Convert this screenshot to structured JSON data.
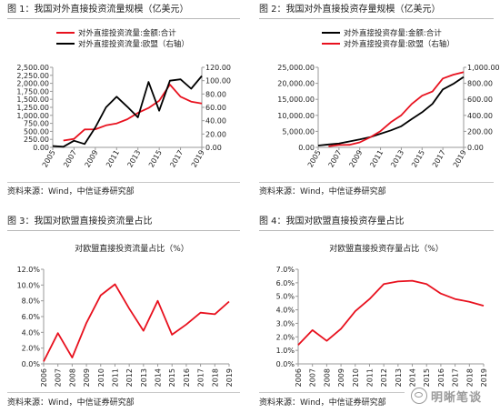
{
  "panels": [
    {
      "title": "图 1：我国对外直接投资流量规模（亿美元）",
      "source": "资料来源：Wind，中信证券研究部"
    },
    {
      "title": "图 2：我国对外直接投资存量规模（亿美元）",
      "source": "资料来源：Wind，中信证券研究部"
    },
    {
      "title": "图 3：我国对欧盟直接投资流量占比",
      "source": "资料来源：Wind，中信证券研究部"
    },
    {
      "title": "图 4：我国对欧盟直接投资存量占比",
      "source": "资料来源：Wind，中信证券研究部"
    }
  ],
  "watermark": {
    "text": "明晰笔谈",
    "icon": "speech-bubble-icon"
  },
  "colors": {
    "red": "#e8111e",
    "black": "#000000",
    "axis": "#999999"
  },
  "chart_data": [
    {
      "type": "line",
      "title": "",
      "x": [
        "2005",
        "2006",
        "2007",
        "2008",
        "2009",
        "2010",
        "2011",
        "2012",
        "2013",
        "2014",
        "2015",
        "2016",
        "2017",
        "2018",
        "2019"
      ],
      "xticks": [
        "2005",
        "2007",
        "2009",
        "2011",
        "2013",
        "2015",
        "2017",
        "2019"
      ],
      "ylim_left": [
        0,
        2500
      ],
      "yticks_left": [
        "0.00",
        "250.00",
        "500.00",
        "750.00",
        "1,000.00",
        "1,250.00",
        "1,500.00",
        "1,750.00",
        "2,000.00",
        "2,250.00",
        "2,500.00"
      ],
      "ylim_right": [
        0,
        120
      ],
      "yticks_right": [
        "0.00",
        "20.00",
        "40.00",
        "60.00",
        "80.00",
        "100.00",
        "120.00"
      ],
      "legend_position": "top-left",
      "series": [
        {
          "name": "对外直接投资流量:金额:合计",
          "axis": "left",
          "color": "#e8111e",
          "values": [
            null,
            212,
            265,
            559,
            565,
            688,
            747,
            878,
            1078,
            1231,
            1457,
            1961,
            1583,
            1430,
            1369
          ]
        },
        {
          "name": "对外直接投资流量:欧盟（右轴）",
          "axis": "right",
          "color": "#000000",
          "values": [
            2,
            1,
            10,
            5,
            30,
            60,
            76,
            61,
            45,
            98,
            55,
            100,
            102,
            88,
            107
          ]
        }
      ]
    },
    {
      "type": "line",
      "title": "",
      "x": [
        "2005",
        "2006",
        "2007",
        "2008",
        "2009",
        "2010",
        "2011",
        "2012",
        "2013",
        "2014",
        "2015",
        "2016",
        "2017",
        "2018",
        "2019"
      ],
      "xticks": [
        "2005",
        "2007",
        "2009",
        "2011",
        "2013",
        "2015",
        "2017",
        "2019"
      ],
      "ylim_left": [
        0,
        25000
      ],
      "yticks_left": [
        "0.00",
        "5,000.00",
        "10,000.00",
        "15,000.00",
        "20,000.00",
        "25,000.00"
      ],
      "ylim_right": [
        0,
        1000
      ],
      "yticks_right": [
        "0.00",
        "200.00",
        "400.00",
        "600.00",
        "800.00",
        "1,000.00"
      ],
      "legend_position": "top-left",
      "series": [
        {
          "name": "对外直接投资存量:金额:合计",
          "axis": "left",
          "color": "#000000",
          "values": [
            572,
            906,
            1179,
            1839,
            2458,
            3172,
            4248,
            5319,
            6605,
            8826,
            10979,
            13574,
            18090,
            19823,
            21989
          ]
        },
        {
          "name": "对外直接投资存量:欧盟（右轴）",
          "axis": "right",
          "color": "#e8111e",
          "values": [
            null,
            13,
            30,
            32,
            63,
            125,
            203,
            315,
            401,
            542,
            645,
            698,
            860,
            908,
            940
          ]
        }
      ]
    },
    {
      "type": "line",
      "title": "对欧盟直接投资流量占比（%）",
      "x": [
        "2006",
        "2007",
        "2008",
        "2009",
        "2010",
        "2011",
        "2012",
        "2013",
        "2014",
        "2015",
        "2016",
        "2017",
        "2018",
        "2019"
      ],
      "ylim": [
        0,
        12
      ],
      "yticks": [
        "0.0%",
        "2.0%",
        "4.0%",
        "6.0%",
        "8.0%",
        "10.0%",
        "12.0%"
      ],
      "series": [
        {
          "name": "",
          "color": "#e8111e",
          "values": [
            0.3,
            3.9,
            0.8,
            5.2,
            8.7,
            10.1,
            7.0,
            4.2,
            8.0,
            3.7,
            5.0,
            6.5,
            6.3,
            7.9
          ]
        }
      ]
    },
    {
      "type": "line",
      "title": "对欧盟直接投资存量占比（%）",
      "x": [
        "2006",
        "2007",
        "2008",
        "2009",
        "2010",
        "2011",
        "2012",
        "2013",
        "2014",
        "2015",
        "2016",
        "2017",
        "2018",
        "2019"
      ],
      "ylim": [
        0,
        7
      ],
      "yticks": [
        "0.0%",
        "1.0%",
        "2.0%",
        "3.0%",
        "4.0%",
        "5.0%",
        "6.0%",
        "7.0%"
      ],
      "series": [
        {
          "name": "",
          "color": "#e8111e",
          "values": [
            1.4,
            2.5,
            1.7,
            2.6,
            3.9,
            4.8,
            5.9,
            6.1,
            6.15,
            5.9,
            5.2,
            4.8,
            4.6,
            4.3
          ]
        }
      ]
    }
  ]
}
